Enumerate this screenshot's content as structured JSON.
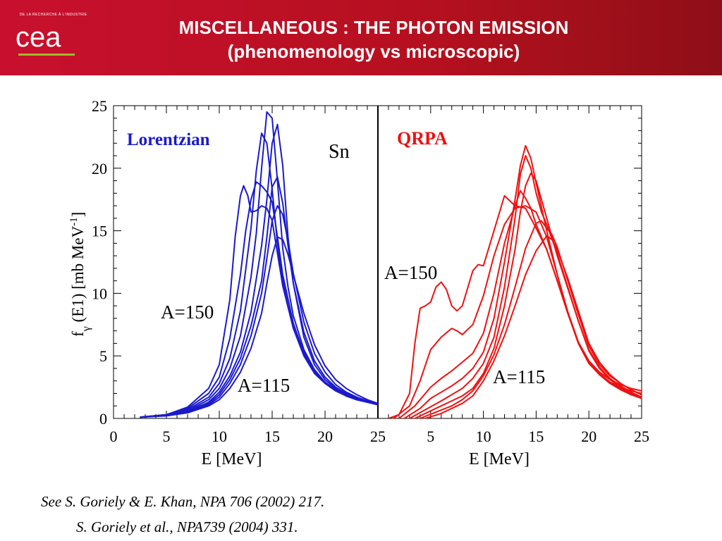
{
  "header": {
    "logo_tagline": "DE LA RECHERCHE À L'INDUSTRIE",
    "logo_text": "cea",
    "title_line1": "MISCELLANEOUS : THE PHOTON EMISSION",
    "title_line2": "(phenomenology vs microscopic)"
  },
  "colors": {
    "header_red": "#c8102e",
    "lorentzian": "#1a1acc",
    "qrpa": "#ee1111",
    "logo_green": "#9bbb2a"
  },
  "chart_data": {
    "type": "line",
    "ylabel_main": "f",
    "ylabel_sub": "γ",
    "ylabel_rest": "(E1) [mb MeV",
    "ylabel_sup": "-1",
    "ylabel_close": "]",
    "yticks": [
      "0",
      "5",
      "10",
      "15",
      "20",
      "25"
    ],
    "ylim": [
      0,
      25
    ],
    "panels": [
      {
        "title": "Lorentzian",
        "element": "Sn",
        "xlabel": "E [MeV]",
        "xticks": [
          "0",
          "5",
          "10",
          "15",
          "20",
          "25"
        ],
        "xlim": [
          0,
          25
        ],
        "label_high": "A=150",
        "label_low": "A=115",
        "color": "#1a1acc",
        "series": [
          {
            "x": [
              2.5,
              5,
              7,
              9,
              10,
              11,
              11.5,
              12,
              12.3,
              12.7,
              13,
              13.5,
              14,
              14.5,
              15,
              15.5,
              16,
              17,
              18,
              19,
              20,
              21,
              22,
              23,
              24,
              25
            ],
            "values": [
              0.1,
              0.3,
              0.9,
              2.4,
              4.3,
              9.5,
              14.5,
              17.8,
              18.6,
              17.8,
              16.5,
              16.6,
              17.0,
              16.8,
              15.8,
              13.2,
              10.6,
              7.2,
              5.0,
              3.6,
              2.8,
              2.2,
              1.8,
              1.5,
              1.3,
              1.1
            ]
          },
          {
            "x": [
              2.5,
              5,
              7,
              9,
              10,
              11,
              12,
              12.5,
              13,
              13.5,
              14,
              14.5,
              15,
              15.5,
              16,
              17,
              18,
              19,
              20,
              21,
              22,
              23,
              24,
              25
            ],
            "values": [
              0.1,
              0.3,
              0.8,
              2.0,
              3.3,
              6.4,
              11.5,
              15.0,
              17.5,
              18.9,
              18.6,
              18.1,
              17.3,
              14.5,
              11.5,
              7.6,
              5.2,
              3.7,
              2.9,
              2.3,
              1.8,
              1.5,
              1.3,
              1.1
            ]
          },
          {
            "x": [
              2.5,
              5,
              7,
              9,
              10,
              11,
              12,
              13,
              13.5,
              14,
              14.5,
              15,
              15.5,
              16,
              16.5,
              17,
              18,
              19,
              20,
              21,
              22,
              23,
              24,
              25
            ],
            "values": [
              0.1,
              0.3,
              0.7,
              1.7,
              2.8,
              4.8,
              8.6,
              15.2,
              19.8,
              22.8,
              22.0,
              18.3,
              14.0,
              11.0,
              9.0,
              7.5,
              5.3,
              3.8,
              2.9,
              2.3,
              1.8,
              1.5,
              1.3,
              1.1
            ]
          },
          {
            "x": [
              2.5,
              5,
              7,
              9,
              10,
              11,
              12,
              13,
              13.5,
              14,
              14.5,
              15,
              15.5,
              16,
              16.5,
              17,
              18,
              19,
              20,
              21,
              22,
              23,
              24,
              25
            ],
            "values": [
              0.1,
              0.3,
              0.6,
              1.5,
              2.4,
              4.0,
              6.6,
              11.3,
              14.8,
              20.0,
              24.5,
              24.0,
              19.0,
              13.6,
              10.5,
              8.2,
              5.5,
              3.9,
              2.9,
              2.3,
              1.8,
              1.5,
              1.3,
              1.1
            ]
          },
          {
            "x": [
              2.5,
              5,
              7,
              9,
              10,
              11,
              12,
              13,
              14,
              14.5,
              15,
              15.5,
              16,
              16.5,
              17,
              18,
              19,
              20,
              21,
              22,
              23,
              24,
              25
            ],
            "values": [
              0.1,
              0.25,
              0.55,
              1.3,
              2.1,
              3.4,
              5.3,
              8.5,
              13.8,
              17.5,
              22.0,
              23.5,
              20.2,
              14.5,
              10.8,
              6.5,
              4.3,
              3.1,
              2.4,
              1.9,
              1.6,
              1.3,
              1.1
            ]
          },
          {
            "x": [
              2.5,
              5,
              7,
              9,
              10,
              11,
              12,
              13,
              14,
              14.5,
              15,
              15.5,
              16,
              16.5,
              17,
              18,
              19,
              20,
              21,
              22,
              23,
              24,
              25
            ],
            "values": [
              0.1,
              0.25,
              0.5,
              1.2,
              1.9,
              3.1,
              4.8,
              7.4,
              11.0,
              14.5,
              18.5,
              19.3,
              17.2,
              13.8,
              10.8,
              6.9,
              4.6,
              3.3,
              2.5,
              2.0,
              1.6,
              1.3,
              1.1
            ]
          },
          {
            "x": [
              2.5,
              5,
              7,
              9,
              10,
              11,
              12,
              13,
              14,
              14.5,
              15,
              15.5,
              16,
              16.5,
              17,
              18,
              19,
              20,
              21,
              22,
              23,
              24,
              25
            ],
            "values": [
              0.1,
              0.25,
              0.5,
              1.1,
              1.7,
              2.8,
              4.3,
              6.6,
              10.0,
              12.8,
              15.8,
              17.0,
              16.3,
              14.2,
              11.6,
              7.7,
              5.2,
              3.7,
              2.7,
              2.1,
              1.7,
              1.4,
              1.2
            ]
          },
          {
            "x": [
              2.5,
              5,
              7,
              9,
              10,
              11,
              12,
              13,
              14,
              14.5,
              15,
              15.5,
              16,
              16.5,
              17,
              18,
              19,
              20,
              21,
              22,
              23,
              24,
              25
            ],
            "values": [
              0.1,
              0.2,
              0.45,
              1.0,
              1.5,
              2.4,
              3.7,
              5.6,
              8.4,
              10.8,
              13.0,
              14.5,
              14.3,
              13.1,
              11.5,
              8.4,
              5.9,
              4.2,
              3.1,
              2.4,
              1.9,
              1.5,
              1.2
            ]
          }
        ]
      },
      {
        "title": "QRPA",
        "xlabel": "E [MeV]",
        "xticks": [
          "5",
          "10",
          "15",
          "20",
          "25"
        ],
        "xlim": [
          0,
          25
        ],
        "label_high": "A=150",
        "label_low": "A=115",
        "color": "#ee1111",
        "series": [
          {
            "x": [
              1,
              2,
              3,
              3.5,
              4,
              4.5,
              5,
              5.5,
              6,
              6.5,
              7,
              7.5,
              8,
              9,
              9.5,
              10,
              11,
              12,
              13,
              14,
              15,
              16,
              17,
              18,
              19,
              20,
              21,
              22,
              23,
              24,
              25
            ],
            "values": [
              0,
              0.3,
              2,
              6,
              8.8,
              9.0,
              9.3,
              10.5,
              10.9,
              10.3,
              9.0,
              8.6,
              9.0,
              11.8,
              12.3,
              12.2,
              15.0,
              17.8,
              17.0,
              16.8,
              15.2,
              13.5,
              11.0,
              8.4,
              6.0,
              4.4,
              3.5,
              2.9,
              2.5,
              2.2,
              2.0
            ]
          },
          {
            "x": [
              1.5,
              3,
              4,
              5,
              6,
              7,
              7.5,
              8,
              9,
              10,
              11,
              12,
              13,
              14,
              15,
              16,
              17,
              18,
              19,
              20,
              21,
              22,
              23,
              24,
              25
            ],
            "values": [
              0,
              1,
              3,
              5.5,
              6.5,
              7.2,
              7.0,
              6.7,
              7.5,
              9.8,
              13.0,
              15.5,
              16.8,
              17.0,
              16.5,
              14.5,
              11.5,
              8.5,
              6.1,
              4.6,
              3.7,
              3.1,
              2.7,
              2.4,
              2.2
            ]
          },
          {
            "x": [
              2,
              3.5,
              5,
              6,
              7,
              8,
              9,
              10,
              11,
              12,
              13,
              13.5,
              14,
              14.5,
              15,
              16,
              17,
              18,
              19,
              20,
              21,
              22,
              23,
              24,
              25
            ],
            "values": [
              0,
              1,
              2.5,
              3.2,
              3.8,
              4.5,
              5.2,
              6.8,
              10.0,
              14.0,
              17.0,
              18.2,
              17.6,
              16.8,
              15.5,
              13.5,
              11.0,
              8.4,
              6.1,
              4.6,
              3.6,
              2.9,
              2.4,
              2.0,
              1.7
            ]
          },
          {
            "x": [
              2.5,
              4,
              5,
              6,
              7,
              8,
              9,
              10,
              11,
              12,
              13,
              13.5,
              14,
              14.5,
              15,
              16,
              17,
              18,
              19,
              20,
              21,
              22,
              23,
              24,
              25
            ],
            "values": [
              0,
              0.8,
              1.6,
              2.1,
              2.6,
              3.2,
              4.0,
              5.3,
              8.0,
              12.5,
              17.5,
              20.2,
              21.8,
              20.8,
              18.8,
              15.0,
              11.5,
              8.5,
              6.1,
              4.5,
              3.5,
              2.8,
              2.3,
              1.9,
              1.6
            ]
          },
          {
            "x": [
              3,
              4.5,
              6,
              7,
              8,
              9,
              10,
              11,
              12,
              13,
              13.5,
              14,
              14.5,
              15,
              15.5,
              16,
              17,
              18,
              19,
              20,
              21,
              22,
              23,
              24,
              25
            ],
            "values": [
              0,
              0.7,
              1.4,
              1.9,
              2.4,
              3.2,
              4.4,
              6.5,
              10.5,
              16.0,
              19.5,
              21.0,
              20.0,
              18.0,
              16.5,
              15.5,
              13.2,
              10.5,
              7.8,
              5.4,
              4.0,
              3.1,
              2.5,
              2.0,
              1.6
            ]
          },
          {
            "x": [
              3.5,
              5,
              6,
              7,
              8,
              9,
              10,
              11,
              12,
              13,
              13.5,
              14,
              14.5,
              15,
              16,
              17,
              18,
              19,
              20,
              21,
              22,
              23,
              24,
              25
            ],
            "values": [
              0,
              0.6,
              1.0,
              1.4,
              1.8,
              2.4,
              3.6,
              5.6,
              9.0,
              13.5,
              16.5,
              18.6,
              19.6,
              19.0,
              16.0,
              13.0,
              10.4,
              7.8,
              5.5,
              4.1,
              3.2,
              2.6,
              2.1,
              1.7
            ]
          },
          {
            "x": [
              4,
              5.5,
              7,
              8,
              9,
              10,
              11,
              12,
              13,
              14,
              15,
              15.5,
              16,
              16.5,
              17,
              18,
              19,
              20,
              21,
              22,
              23,
              24,
              25
            ],
            "values": [
              0,
              0.5,
              1.0,
              1.5,
              2.2,
              3.4,
              5.1,
              7.5,
              10.5,
              13.6,
              15.6,
              15.8,
              15.2,
              14.7,
              13.7,
              11.0,
              8.3,
              5.8,
              4.3,
              3.4,
              2.8,
              2.3,
              1.9
            ]
          },
          {
            "x": [
              4.5,
              6,
              7,
              8,
              9,
              10,
              11,
              12,
              13,
              14,
              15,
              16,
              16.5,
              17,
              18,
              19,
              20,
              21,
              22,
              23,
              24,
              25
            ],
            "values": [
              0,
              0.4,
              0.8,
              1.2,
              1.8,
              3.0,
              4.6,
              6.6,
              9.0,
              11.5,
              13.4,
              14.6,
              14.3,
              13.5,
              11.2,
              8.6,
              6.0,
              4.5,
              3.5,
              2.8,
              2.3,
              1.9
            ]
          }
        ]
      }
    ]
  },
  "references": {
    "line1": "See S. Goriely & E. Khan, NPA 706 (2002) 217.",
    "line2": "S. Goriely et al., NPA739 (2004) 331."
  }
}
